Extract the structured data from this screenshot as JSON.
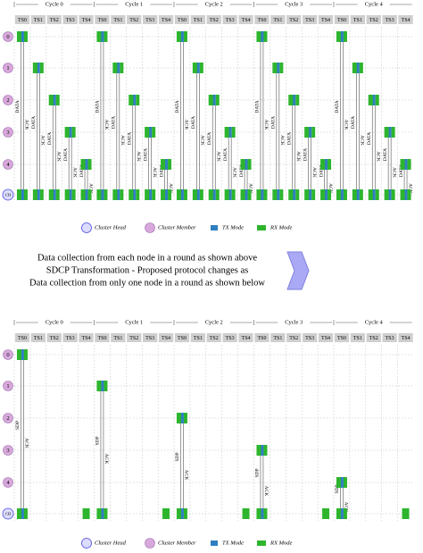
{
  "cycles": [
    "Cycle 0",
    "Cycle 1",
    "Cycle 2",
    "Cycle 3",
    "Cycle 4"
  ],
  "timeslots": [
    "TS0",
    "TS1",
    "TS2",
    "TS3",
    "TS4"
  ],
  "nodes": [
    "0",
    "1",
    "2",
    "3",
    "4"
  ],
  "head": "CH",
  "top": {
    "link_labels": [
      "DATA",
      "ACK"
    ]
  },
  "bottom": {
    "link_labels": [
      "SDP",
      "ACK"
    ]
  },
  "legend": [
    "Cluster Head",
    "Cluster Member",
    "TX Mode",
    "RX Mode"
  ],
  "caption": [
    "Data collection from each node in a round as shown above",
    "SDCP Transformation - Proposed protocol changes as",
    "Data collection from only one node in a round as shown below"
  ]
}
